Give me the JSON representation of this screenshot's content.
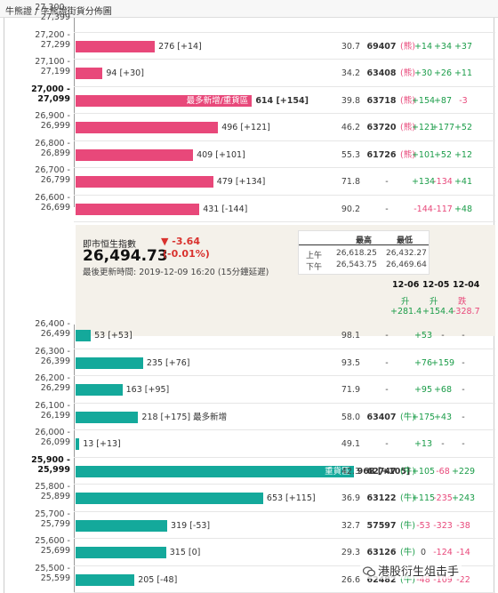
{
  "breadcrumb": "牛熊證 / 牛熊證街貨分佈圖",
  "bear_rows": [
    {
      "range": [
        "27,300 -",
        "27,399"
      ],
      "bold": false,
      "qty": null,
      "pct": "",
      "code": "",
      "changes": []
    },
    {
      "range": [
        "27,200 -",
        "27,299"
      ],
      "bold": false,
      "qty": 276,
      "label": "276 [+14]",
      "pct": "30.7",
      "code": "69407",
      "type": "(熊)",
      "changes": [
        "+14",
        "+34",
        "+37"
      ]
    },
    {
      "range": [
        "27,100 -",
        "27,199"
      ],
      "bold": false,
      "qty": 94,
      "label": "94 [+30]",
      "pct": "34.2",
      "code": "63408",
      "type": "(熊)",
      "changes": [
        "+30",
        "+26",
        "+11"
      ]
    },
    {
      "range": [
        "27,000 -",
        "27,099"
      ],
      "bold": true,
      "qty": 614,
      "inlabel": "最多新增/重貨區",
      "label": "614 [+154]",
      "label_bold": true,
      "pct": "39.8",
      "code": "63718",
      "type": "(熊)",
      "changes": [
        "+154",
        "+87",
        "-3"
      ]
    },
    {
      "range": [
        "26,900 -",
        "26,999"
      ],
      "bold": false,
      "qty": 496,
      "label": "496 [+121]",
      "pct": "46.2",
      "code": "63720",
      "type": "(熊)",
      "changes": [
        "+121",
        "+177",
        "+52"
      ]
    },
    {
      "range": [
        "26,800 -",
        "26,899"
      ],
      "bold": false,
      "qty": 409,
      "label": "409 [+101]",
      "pct": "55.3",
      "code": "61726",
      "type": "(熊)",
      "changes": [
        "+101",
        "+52",
        "+12"
      ]
    },
    {
      "range": [
        "26,700 -",
        "26,799"
      ],
      "bold": false,
      "qty": 479,
      "label": "479 [+134]",
      "pct": "71.8",
      "code": "-",
      "type": "",
      "changes": [
        "+134",
        "-134",
        "+41"
      ]
    },
    {
      "range": [
        "26,600 -",
        "26,699"
      ],
      "bold": false,
      "qty": 431,
      "label": "431 [-144]",
      "pct": "90.2",
      "code": "-",
      "type": "",
      "changes": [
        "-144",
        "-117",
        "+48"
      ]
    }
  ],
  "index_panel": {
    "title": "即市恒生指數",
    "value": "26,494.73",
    "change": "▼ -3.64",
    "change_pct": "(-0.01%)",
    "updated": "最後更新時間: 2019-12-09 16:20 (15分鐘延遲)",
    "hl_headers": [
      "最高",
      "最低"
    ],
    "hl_rows": [
      {
        "label": "上午",
        "high": "26,618.25",
        "low": "26,432.27"
      },
      {
        "label": "下午",
        "high": "26,543.75",
        "low": "26,469.64"
      }
    ],
    "dates": [
      "12-06",
      "12-05",
      "12-04"
    ],
    "directions": [
      "升",
      "升",
      "跌"
    ],
    "sums": [
      "+281.4",
      "+154.4",
      "-328.7"
    ]
  },
  "bull_rows": [
    {
      "range": [
        "26,400 -",
        "26,499"
      ],
      "bold": false,
      "qty": 53,
      "label": "53 [+53]",
      "pct": "98.1",
      "code": "-",
      "type": "",
      "changes": [
        "+53",
        "-",
        "-"
      ]
    },
    {
      "range": [
        "26,300 -",
        "26,399"
      ],
      "bold": false,
      "qty": 235,
      "label": "235 [+76]",
      "pct": "93.5",
      "code": "-",
      "type": "",
      "changes": [
        "+76",
        "+159",
        "-"
      ]
    },
    {
      "range": [
        "26,200 -",
        "26,299"
      ],
      "bold": false,
      "qty": 163,
      "label": "163 [+95]",
      "pct": "71.9",
      "code": "-",
      "type": "",
      "changes": [
        "+95",
        "+68",
        "-"
      ]
    },
    {
      "range": [
        "26,100 -",
        "26,199"
      ],
      "bold": false,
      "qty": 218,
      "label": "218 [+175] 最多新增",
      "pct": "58.0",
      "code": "63407",
      "type": "(牛)",
      "changes": [
        "+175",
        "+43",
        "-"
      ]
    },
    {
      "range": [
        "26,000 -",
        "26,099"
      ],
      "bold": false,
      "qty": 13,
      "label": "13 [+13]",
      "pct": "49.1",
      "code": "-",
      "type": "",
      "changes": [
        "+13",
        "-",
        "-"
      ]
    },
    {
      "range": [
        "25,900 -",
        "25,999"
      ],
      "bold": true,
      "qty": 968,
      "inlabel": "重貨區",
      "label": "968 [+105]",
      "label_bold": true,
      "pct": "42.3",
      "code": "62747",
      "type": "(牛)",
      "changes": [
        "+105",
        "-68",
        "+229"
      ]
    },
    {
      "range": [
        "25,800 -",
        "25,899"
      ],
      "bold": false,
      "qty": 653,
      "label": "653 [+115]",
      "pct": "36.9",
      "code": "63122",
      "type": "(牛)",
      "changes": [
        "+115",
        "-235",
        "+243"
      ]
    },
    {
      "range": [
        "25,700 -",
        "25,799"
      ],
      "bold": false,
      "qty": 319,
      "label": "319 [-53]",
      "pct": "32.7",
      "code": "57597",
      "type": "(牛)",
      "changes": [
        "-53",
        "-323",
        "-38"
      ]
    },
    {
      "range": [
        "25,600 -",
        "25,699"
      ],
      "bold": false,
      "qty": 315,
      "label": "315 [0]",
      "pct": "29.3",
      "code": "63126",
      "type": "(牛)",
      "changes": [
        "0",
        "-124",
        "-14"
      ]
    },
    {
      "range": [
        "25,500 -",
        "25,599"
      ],
      "bold": false,
      "qty": 205,
      "label": "205 [-48]",
      "pct": "26.6",
      "code": "62482",
      "type": "(牛)",
      "changes": [
        "-48",
        "-109",
        "-22"
      ]
    }
  ],
  "colors": {
    "bear": "#e8487a",
    "bull": "#14a99b",
    "up": "#1a9c48",
    "down": "#e8487a"
  },
  "watermark": "港股衍生俎击手",
  "watermark_icon": "wechat-icon"
}
